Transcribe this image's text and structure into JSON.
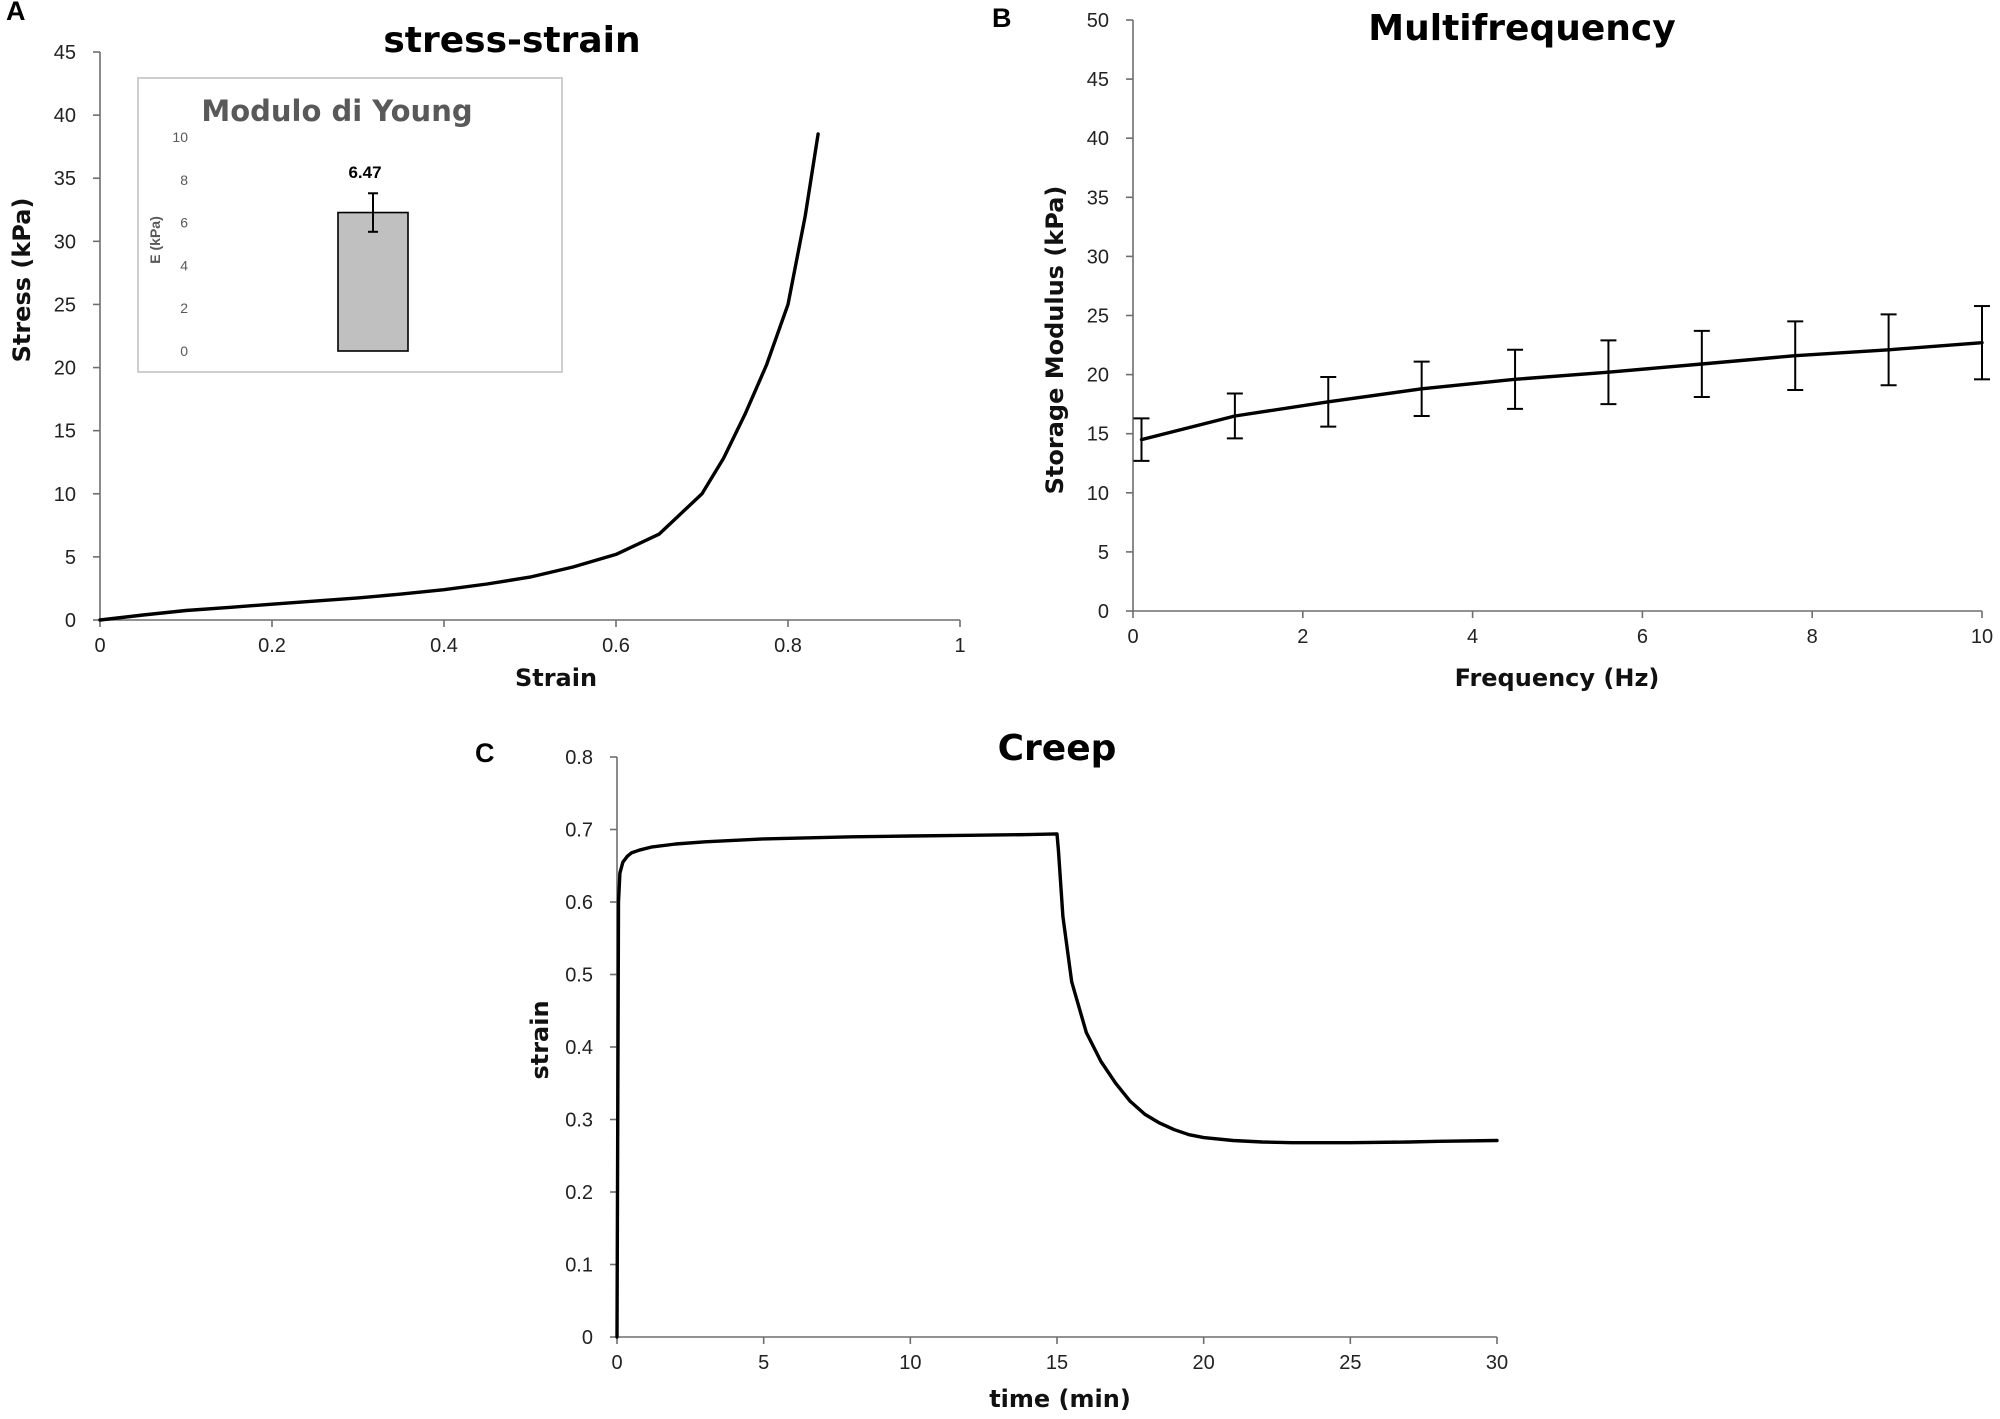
{
  "panel_labels": [
    "A",
    "B",
    "C"
  ],
  "chart_data": [
    {
      "id": "A",
      "type": "line",
      "title": "stress-strain",
      "xlabel": "Strain",
      "ylabel": "Stress (kPa)",
      "xlim": [
        0,
        1
      ],
      "ylim": [
        0,
        45
      ],
      "xticks": [
        "0",
        "0.2",
        "0.4",
        "0.6",
        "0.8",
        "1"
      ],
      "yticks": [
        "0",
        "5",
        "10",
        "15",
        "20",
        "25",
        "30",
        "35",
        "40",
        "45"
      ],
      "grid": false,
      "series": [
        {
          "name": "stress-strain",
          "x": [
            0,
            0.05,
            0.1,
            0.15,
            0.2,
            0.25,
            0.3,
            0.35,
            0.4,
            0.45,
            0.5,
            0.55,
            0.6,
            0.65,
            0.7,
            0.725,
            0.75,
            0.775,
            0.8,
            0.82,
            0.835
          ],
          "y": [
            0,
            0.4,
            0.75,
            1.0,
            1.25,
            1.5,
            1.75,
            2.05,
            2.4,
            2.85,
            3.4,
            4.2,
            5.2,
            6.8,
            10.0,
            12.8,
            16.3,
            20.2,
            25.0,
            32.0,
            38.5
          ]
        }
      ],
      "inset": {
        "type": "bar",
        "title": "Modulo di Young",
        "ylabel": "E (kPa)",
        "ylim": [
          0,
          10
        ],
        "yticks": [
          "0",
          "2",
          "4",
          "6",
          "8",
          "10"
        ],
        "categories": [
          ""
        ],
        "values": [
          6.47
        ],
        "errors": [
          0.9
        ],
        "value_label": "6.47"
      }
    },
    {
      "id": "B",
      "type": "line",
      "title": "Multifrequency",
      "xlabel": "Frequency (Hz)",
      "ylabel": "Storage Modulus (kPa)",
      "xlim": [
        0,
        10
      ],
      "ylim": [
        0,
        50
      ],
      "xticks": [
        "0",
        "2",
        "4",
        "6",
        "8",
        "10"
      ],
      "yticks": [
        "0",
        "5",
        "10",
        "15",
        "20",
        "25",
        "30",
        "35",
        "40",
        "45",
        "50"
      ],
      "grid": false,
      "series": [
        {
          "name": "Storage Modulus",
          "x": [
            0.1,
            1.2,
            2.3,
            3.4,
            4.5,
            5.6,
            6.7,
            7.8,
            8.9,
            10.0
          ],
          "y": [
            14.5,
            16.5,
            17.7,
            18.8,
            19.6,
            20.2,
            20.9,
            21.6,
            22.1,
            22.7
          ],
          "errors": [
            1.8,
            1.9,
            2.1,
            2.3,
            2.5,
            2.7,
            2.8,
            2.9,
            3.0,
            3.1
          ]
        }
      ]
    },
    {
      "id": "C",
      "type": "line",
      "title": "Creep",
      "xlabel": "time (min)",
      "ylabel": "strain",
      "xlim": [
        0,
        30
      ],
      "ylim": [
        0,
        0.8
      ],
      "xticks": [
        "0",
        "5",
        "10",
        "15",
        "20",
        "25",
        "30"
      ],
      "yticks": [
        "0",
        "0.1",
        "0.2",
        "0.3",
        "0.4",
        "0.5",
        "0.6",
        "0.7",
        "0.8"
      ],
      "grid": false,
      "series": [
        {
          "name": "creep strain",
          "x": [
            0,
            0.05,
            0.1,
            0.2,
            0.35,
            0.5,
            0.8,
            1.2,
            2,
            3,
            5,
            8,
            10,
            12,
            14,
            15,
            15.05,
            15.2,
            15.5,
            16,
            16.5,
            17,
            17.5,
            18,
            18.5,
            19,
            19.5,
            20,
            21,
            22,
            23,
            25,
            27,
            28,
            30
          ],
          "y": [
            0,
            0.6,
            0.64,
            0.655,
            0.663,
            0.668,
            0.672,
            0.676,
            0.68,
            0.683,
            0.687,
            0.69,
            0.691,
            0.692,
            0.693,
            0.694,
            0.67,
            0.58,
            0.49,
            0.42,
            0.38,
            0.35,
            0.325,
            0.307,
            0.295,
            0.286,
            0.279,
            0.275,
            0.271,
            0.269,
            0.268,
            0.268,
            0.269,
            0.27,
            0.271
          ]
        }
      ]
    }
  ]
}
